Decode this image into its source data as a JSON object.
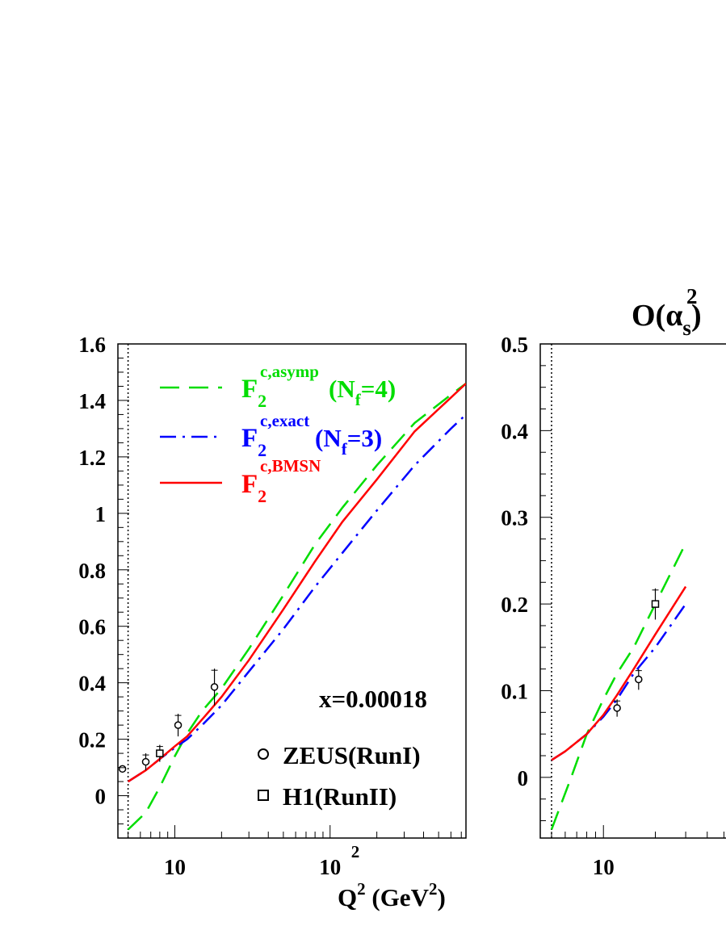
{
  "title": "O(α",
  "title_sub": "s",
  "title_sup": "2",
  "title_close": ")",
  "colors": {
    "asymp": "#00dd00",
    "exact": "#0000ff",
    "bmsn": "#ff0000",
    "data": "#000000"
  },
  "chart_data": [
    {
      "type": "line",
      "xscale": "log",
      "xlim": [
        4.3,
        750
      ],
      "ylim": [
        -0.15,
        1.6
      ],
      "yticks": [
        0,
        0.2,
        0.4,
        0.6,
        0.8,
        1,
        1.2,
        1.4,
        1.6
      ],
      "ytick_labels": [
        "0",
        "0.2",
        "0.4",
        "0.6",
        "0.8",
        "1",
        "1.2",
        "1.4",
        "1.6"
      ],
      "xtick_labels": [
        {
          "x": 10,
          "label": "10",
          "sup": ""
        },
        {
          "x": 100,
          "label": "10",
          "sup": "2"
        }
      ],
      "xlabel": {
        "q": "Q",
        "sup": "2",
        "unit": " (GeV",
        "unit_sup": "2",
        "unit_close": ")"
      },
      "threshold_x": 5.0,
      "annotation": "x=0.00018",
      "legend": [
        {
          "key": "asymp",
          "base": "F",
          "sub": "2",
          "sup": "c,asymp",
          "suffix_a": "(N",
          "suffix_sub": "f",
          "suffix_b": "=4)"
        },
        {
          "key": "exact",
          "base": "F",
          "sub": "2",
          "sup": "c,exact",
          "suffix_a": "(N",
          "suffix_sub": "f",
          "suffix_b": "=3)"
        },
        {
          "key": "bmsn",
          "base": "F",
          "sub": "2",
          "sup": "c,BMSN",
          "suffix_a": "",
          "suffix_sub": "",
          "suffix_b": ""
        }
      ],
      "data_legend": [
        {
          "marker": "circle",
          "label": "ZEUS(RunI)"
        },
        {
          "marker": "square",
          "label": "H1(RunII)"
        }
      ],
      "series": [
        {
          "key": "asymp",
          "style": "dashed",
          "points": [
            [
              5.0,
              -0.12
            ],
            [
              6.5,
              -0.06
            ],
            [
              8,
              0.03
            ],
            [
              10,
              0.14
            ],
            [
              12,
              0.22
            ],
            [
              15,
              0.3
            ],
            [
              20,
              0.38
            ],
            [
              30,
              0.52
            ],
            [
              50,
              0.71
            ],
            [
              80,
              0.89
            ],
            [
              120,
              1.02
            ],
            [
              200,
              1.17
            ],
            [
              350,
              1.32
            ],
            [
              600,
              1.42
            ],
            [
              750,
              1.46
            ]
          ]
        },
        {
          "key": "exact",
          "style": "dashdot",
          "points": [
            [
              5.0,
              0.05
            ],
            [
              6.5,
              0.09
            ],
            [
              8,
              0.13
            ],
            [
              10,
              0.17
            ],
            [
              12,
              0.2
            ],
            [
              15,
              0.25
            ],
            [
              20,
              0.32
            ],
            [
              30,
              0.44
            ],
            [
              50,
              0.59
            ],
            [
              80,
              0.74
            ],
            [
              120,
              0.86
            ],
            [
              200,
              1.01
            ],
            [
              350,
              1.17
            ],
            [
              600,
              1.3
            ],
            [
              750,
              1.35
            ]
          ]
        },
        {
          "key": "bmsn",
          "style": "solid",
          "points": [
            [
              5.0,
              0.05
            ],
            [
              6.5,
              0.09
            ],
            [
              8,
              0.13
            ],
            [
              10,
              0.175
            ],
            [
              12,
              0.21
            ],
            [
              15,
              0.27
            ],
            [
              20,
              0.35
            ],
            [
              30,
              0.48
            ],
            [
              50,
              0.66
            ],
            [
              80,
              0.83
            ],
            [
              120,
              0.97
            ],
            [
              200,
              1.12
            ],
            [
              350,
              1.29
            ],
            [
              600,
              1.41
            ],
            [
              750,
              1.46
            ]
          ]
        }
      ],
      "points": [
        {
          "marker": "circle",
          "x": 4.6,
          "y": 0.095,
          "err": 0.01
        },
        {
          "marker": "circle",
          "x": 6.5,
          "y": 0.12,
          "err": 0.03
        },
        {
          "marker": "square",
          "x": 8.0,
          "y": 0.15,
          "err": 0.03
        },
        {
          "marker": "circle",
          "x": 10.5,
          "y": 0.25,
          "err": 0.04
        },
        {
          "marker": "circle",
          "x": 18.0,
          "y": 0.385,
          "err": 0.065
        }
      ]
    },
    {
      "type": "line",
      "xscale": "log",
      "xlim": [
        4.3,
        80
      ],
      "ylim": [
        -0.07,
        0.5
      ],
      "yticks": [
        0,
        0.1,
        0.2,
        0.3,
        0.4,
        0.5
      ],
      "ytick_labels": [
        "0",
        "0.1",
        "0.2",
        "0.3",
        "0.4",
        "0.5"
      ],
      "xtick_labels": [
        {
          "x": 10,
          "label": "10",
          "sup": ""
        }
      ],
      "threshold_x": 5.0,
      "series": [
        {
          "key": "asymp",
          "style": "dashed",
          "points": [
            [
              5.0,
              -0.06
            ],
            [
              6.5,
              0.0
            ],
            [
              8,
              0.05
            ],
            [
              10,
              0.09
            ],
            [
              12,
              0.12
            ],
            [
              15,
              0.15
            ],
            [
              20,
              0.2
            ],
            [
              30,
              0.27
            ]
          ]
        },
        {
          "key": "exact",
          "style": "dashdot",
          "points": [
            [
              5.0,
              0.02
            ],
            [
              6.0,
              0.03
            ],
            [
              8,
              0.05
            ],
            [
              10,
              0.07
            ],
            [
              12,
              0.09
            ],
            [
              15,
              0.12
            ],
            [
              20,
              0.15
            ],
            [
              30,
              0.2
            ]
          ]
        },
        {
          "key": "bmsn",
          "style": "solid",
          "points": [
            [
              5.0,
              0.02
            ],
            [
              6.0,
              0.03
            ],
            [
              8,
              0.05
            ],
            [
              10,
              0.072
            ],
            [
              12,
              0.095
            ],
            [
              15,
              0.125
            ],
            [
              20,
              0.165
            ],
            [
              30,
              0.22
            ]
          ]
        }
      ],
      "points": [
        {
          "marker": "circle",
          "x": 12.0,
          "y": 0.08,
          "err": 0.01
        },
        {
          "marker": "circle",
          "x": 16.0,
          "y": 0.113,
          "err": 0.012
        },
        {
          "marker": "square",
          "x": 20.0,
          "y": 0.2,
          "err": 0.018
        }
      ]
    }
  ]
}
